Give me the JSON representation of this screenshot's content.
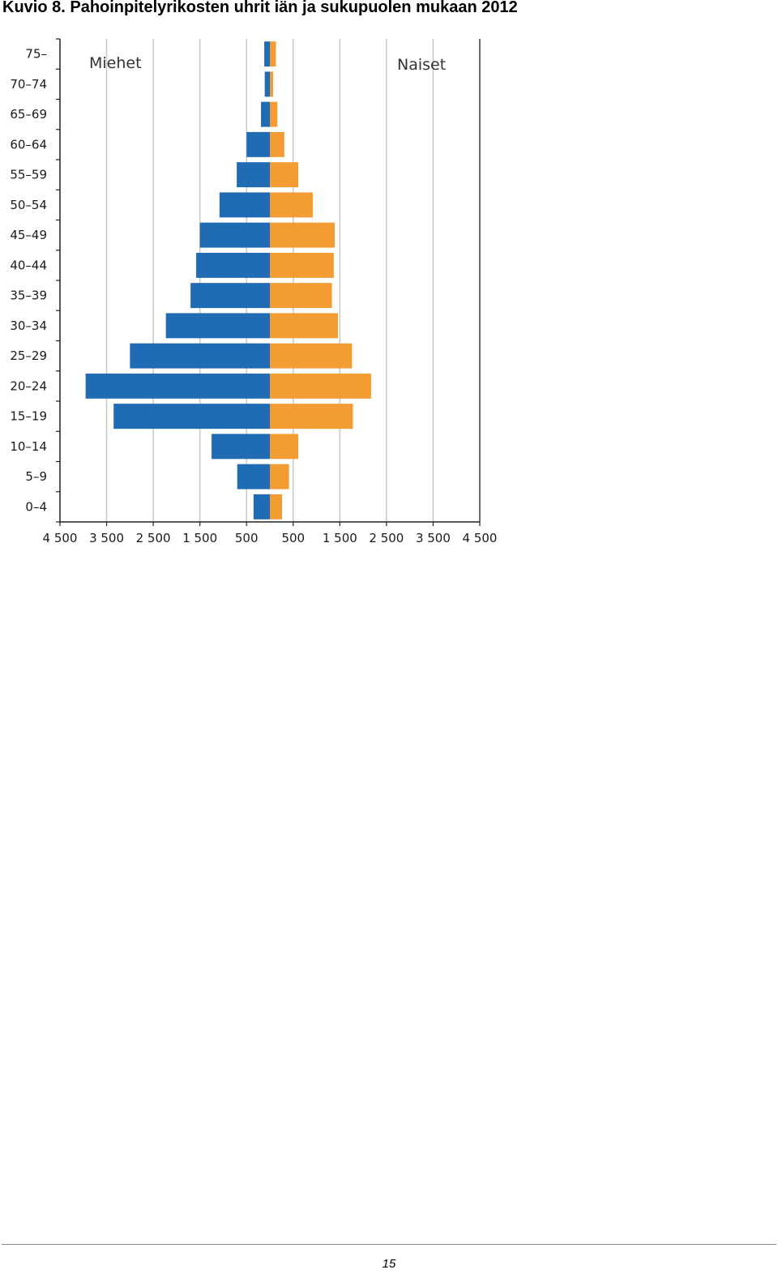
{
  "page": {
    "title": "Kuvio 8. Pahoinpitelyrikosten uhrit iän ja sukupuolen mukaan 2012",
    "page_number": "15"
  },
  "chart_data": {
    "type": "bar",
    "orientation": "horizontal",
    "layout": "population-pyramid",
    "title": "Kuvio 8. Pahoinpitelyrikosten uhrit iän ja sukupuolen mukaan 2012",
    "categories": [
      "0–4",
      "5–9",
      "10–14",
      "15–19",
      "20–24",
      "25–29",
      "30–34",
      "35–39",
      "40–44",
      "45–49",
      "50–54",
      "55–59",
      "60–64",
      "65–69",
      "70–74",
      "75–"
    ],
    "series": [
      {
        "name": "Miehet",
        "side": "left",
        "color": "#1f6bb4",
        "values": [
          350,
          700,
          1250,
          3350,
          3950,
          3000,
          2230,
          1700,
          1580,
          1500,
          1080,
          710,
          500,
          190,
          110,
          120
        ]
      },
      {
        "name": "Naiset",
        "side": "right",
        "color": "#f39c33",
        "values": [
          260,
          410,
          610,
          1780,
          2170,
          1760,
          1460,
          1330,
          1370,
          1390,
          920,
          610,
          310,
          160,
          70,
          130
        ]
      }
    ],
    "xlim": [
      -4500,
      4500
    ],
    "xticks": [
      -4500,
      -3500,
      -2500,
      -1500,
      -500,
      500,
      1500,
      2500,
      3500,
      4500
    ],
    "xtick_labels": [
      "4 500",
      "3 500",
      "2 500",
      "1 500",
      "500",
      "500",
      "1 500",
      "2 500",
      "3 500",
      "4 500"
    ],
    "xlabel": "",
    "ylabel": "",
    "grid": "vertical",
    "legend": "in-plot corners: Miehet top-left, Naiset top-right"
  }
}
